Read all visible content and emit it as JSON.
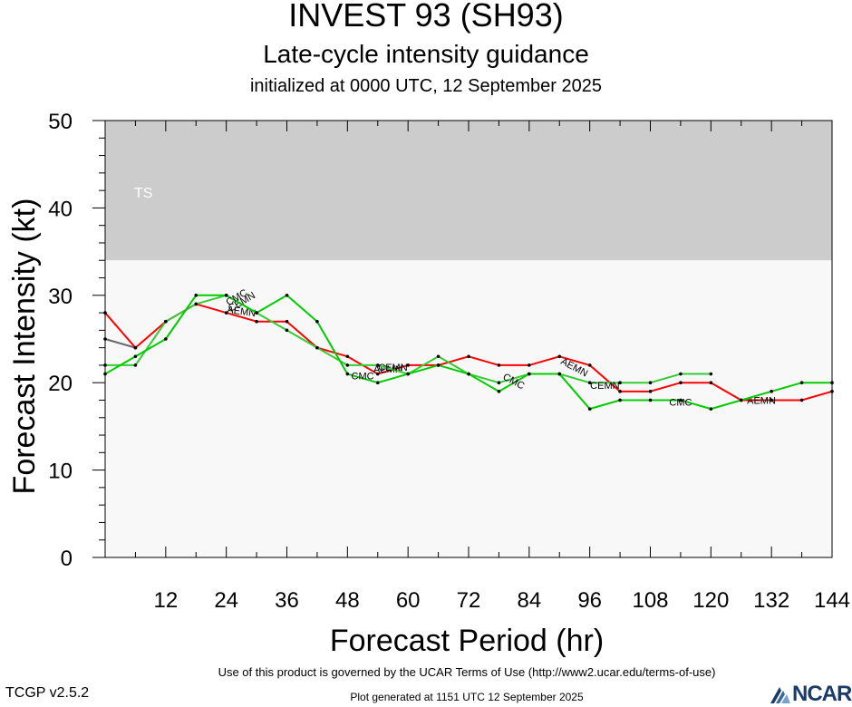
{
  "header": {
    "title": "INVEST 93 (SH93)",
    "subtitle": "Late-cycle intensity guidance",
    "initialized": "initialized at 0000 UTC, 12 September 2025"
  },
  "footer": {
    "terms": "Use of this product is governed by the UCAR Terms of Use (http://www2.ucar.edu/terms-of-use)",
    "version": "TCGP v2.5.2",
    "generated": "Plot generated at 1151 UTC   12 September 2025",
    "logo_text": "NCAR"
  },
  "chart_data": {
    "type": "line",
    "xlabel": "Forecast Period (hr)",
    "ylabel": "Forecast Intensity (kt)",
    "xlim": [
      0,
      144
    ],
    "ylim": [
      0,
      50
    ],
    "xticks": [
      12,
      24,
      36,
      48,
      60,
      72,
      84,
      96,
      108,
      120,
      132,
      144
    ],
    "yticks": [
      0,
      10,
      20,
      30,
      40,
      50
    ],
    "grid": true,
    "bands": [
      {
        "label": "TS",
        "from": 34,
        "to": 50,
        "color": "#cccccc"
      },
      {
        "label": "",
        "from": 0,
        "to": 34,
        "color": "#f8f8f8"
      }
    ],
    "series": [
      {
        "color": "#666666",
        "x": [
          0,
          6
        ],
        "y": [
          25,
          24
        ]
      },
      {
        "name": "AEMN",
        "color": "#ff0000",
        "x": [
          0,
          6,
          12,
          18,
          24,
          30,
          36,
          42,
          48,
          54,
          60,
          66,
          72,
          78,
          84,
          90,
          96,
          102,
          108,
          114,
          120,
          126,
          132,
          138,
          144
        ],
        "y": [
          28,
          24,
          27,
          29,
          28,
          27,
          27,
          24,
          23,
          21,
          22,
          22,
          23,
          22,
          22,
          23,
          22,
          19,
          19,
          20,
          20,
          18,
          18,
          18,
          19
        ],
        "labels": [
          {
            "text": "AEMN",
            "x": 27,
            "y": 28.2,
            "rot": 8
          },
          {
            "text": "AEMN",
            "x": 56,
            "y": 21.6,
            "rot": 0
          },
          {
            "text": "AEMN",
            "x": 93,
            "y": 21.8,
            "rot": 28
          },
          {
            "text": "AEMN",
            "x": 130,
            "y": 18,
            "rot": 0
          }
        ]
      },
      {
        "name": "CEMN",
        "color": "#33cc33",
        "x": [
          0,
          6,
          12,
          18,
          24,
          30,
          36,
          42,
          48,
          54,
          60,
          66,
          72,
          78,
          84,
          90,
          96,
          102,
          108,
          114,
          120
        ],
        "y": [
          22,
          22,
          27,
          29,
          30,
          28,
          26,
          24,
          22,
          22,
          21,
          23,
          21,
          20,
          21,
          21,
          20,
          20,
          20,
          21,
          21
        ],
        "labels": [
          {
            "text": "CEMN",
            "x": 27,
            "y": 29.3,
            "rot": -30
          },
          {
            "text": "CEMN",
            "x": 57,
            "y": 21.8,
            "rot": 0
          },
          {
            "text": "CEMN",
            "x": 99,
            "y": 19.7,
            "rot": 0
          }
        ]
      },
      {
        "name": "CMC",
        "color": "#00cc00",
        "x": [
          0,
          6,
          12,
          18,
          24,
          30,
          36,
          42,
          48,
          54,
          60,
          66,
          72,
          78,
          84,
          90,
          96,
          102,
          108,
          114,
          120,
          126,
          132,
          138,
          144
        ],
        "y": [
          21,
          23,
          25,
          30,
          30,
          28,
          30,
          27,
          21,
          20,
          21,
          22,
          21,
          19,
          21,
          21,
          17,
          18,
          18,
          18,
          17,
          18,
          19,
          20,
          20
        ],
        "labels": [
          {
            "text": "CMC",
            "x": 26,
            "y": 29.8,
            "rot": -30
          },
          {
            "text": "CMC",
            "x": 51,
            "y": 20.8,
            "rot": 0
          },
          {
            "text": "CMC",
            "x": 81,
            "y": 20.2,
            "rot": 28
          },
          {
            "text": "CMC",
            "x": 114,
            "y": 17.8,
            "rot": 0
          }
        ]
      }
    ]
  }
}
